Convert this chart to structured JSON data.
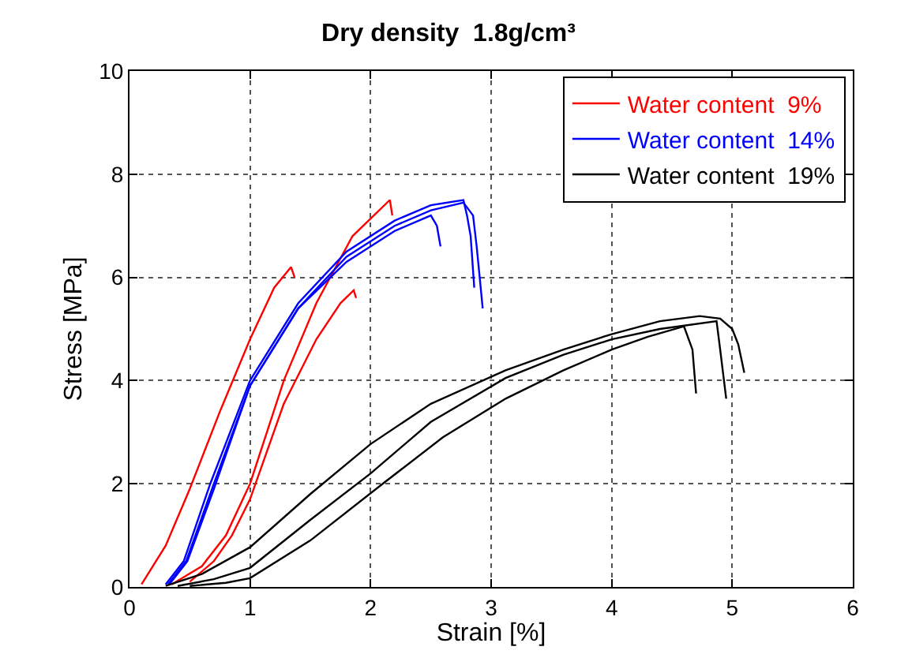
{
  "chart_data": {
    "type": "line",
    "title": "Dry density  1.8g/cm³",
    "xlabel": "Strain [%]",
    "ylabel": "Stress [MPa]",
    "xlim": [
      0,
      6
    ],
    "xticks": [
      0,
      1,
      2,
      3,
      4,
      5,
      6
    ],
    "ylim": [
      0,
      10
    ],
    "yticks": [
      0,
      2,
      4,
      6,
      8,
      10
    ],
    "grid": true,
    "legend": "top right",
    "marker": "none",
    "line_style": "solid",
    "series": [
      {
        "name": "Water content  9%",
        "color": "#ff0000",
        "x": [
          0.1,
          0.3,
          0.5,
          0.75,
          1.0,
          1.2,
          1.34,
          1.37
        ],
        "values": [
          0.05,
          0.8,
          1.9,
          3.4,
          4.8,
          5.8,
          6.2,
          6.0
        ]
      },
      {
        "color": "#ff0000",
        "x": [
          0.35,
          0.6,
          0.8,
          1.0,
          1.28,
          1.55,
          1.85,
          2.16,
          2.18
        ],
        "values": [
          0.05,
          0.4,
          1.0,
          2.0,
          4.0,
          5.5,
          6.8,
          7.5,
          7.2
        ]
      },
      {
        "color": "#ff0000",
        "x": [
          0.5,
          0.7,
          0.85,
          1.0,
          1.28,
          1.55,
          1.75,
          1.86,
          1.88
        ],
        "values": [
          0.1,
          0.5,
          1.0,
          1.7,
          3.55,
          4.8,
          5.5,
          5.75,
          5.6
        ]
      },
      {
        "name": "Water content  14%",
        "color": "#0000ff",
        "x": [
          0.3,
          0.45,
          0.67,
          1.0,
          1.4,
          1.8,
          2.2,
          2.5,
          2.77,
          2.8,
          2.83,
          2.86
        ],
        "values": [
          0.05,
          0.5,
          2.0,
          4.0,
          5.5,
          6.5,
          7.1,
          7.4,
          7.5,
          7.2,
          6.8,
          5.8
        ]
      },
      {
        "color": "#0000ff",
        "x": [
          0.32,
          0.47,
          0.7,
          1.0,
          1.4,
          1.8,
          2.2,
          2.5,
          2.77,
          2.85,
          2.88,
          2.93
        ],
        "values": [
          0.05,
          0.5,
          2.0,
          3.9,
          5.4,
          6.4,
          7.0,
          7.3,
          7.45,
          7.2,
          6.6,
          5.4
        ]
      },
      {
        "color": "#0000ff",
        "x": [
          0.33,
          0.48,
          0.7,
          1.0,
          1.4,
          1.8,
          2.2,
          2.5,
          2.55,
          2.58
        ],
        "values": [
          0.05,
          0.5,
          1.9,
          3.9,
          5.4,
          6.3,
          6.9,
          7.2,
          7.0,
          6.6
        ]
      },
      {
        "name": "Water content  19%",
        "color": "#000000",
        "x": [
          0.3,
          0.6,
          1.0,
          1.5,
          2.0,
          2.5,
          3.12,
          3.6,
          4.0,
          4.4,
          4.73,
          4.9,
          5.0,
          5.05,
          5.1
        ],
        "values": [
          0.02,
          0.25,
          0.77,
          1.8,
          2.77,
          3.55,
          4.2,
          4.6,
          4.9,
          5.15,
          5.25,
          5.2,
          5.0,
          4.7,
          4.15
        ]
      },
      {
        "color": "#000000",
        "x": [
          0.4,
          0.7,
          1.0,
          1.5,
          2.0,
          2.5,
          3.12,
          3.6,
          4.0,
          4.4,
          4.87,
          4.9,
          4.95
        ],
        "values": [
          0.02,
          0.15,
          0.37,
          1.3,
          2.2,
          3.2,
          4.05,
          4.5,
          4.8,
          5.0,
          5.15,
          4.6,
          3.65
        ]
      },
      {
        "color": "#000000",
        "x": [
          0.5,
          0.8,
          1.0,
          1.5,
          2.1,
          2.6,
          3.12,
          3.6,
          4.0,
          4.3,
          4.6,
          4.67,
          4.7
        ],
        "values": [
          0.02,
          0.08,
          0.17,
          0.9,
          2.0,
          2.9,
          3.65,
          4.2,
          4.6,
          4.85,
          5.05,
          4.6,
          3.75
        ]
      }
    ]
  }
}
